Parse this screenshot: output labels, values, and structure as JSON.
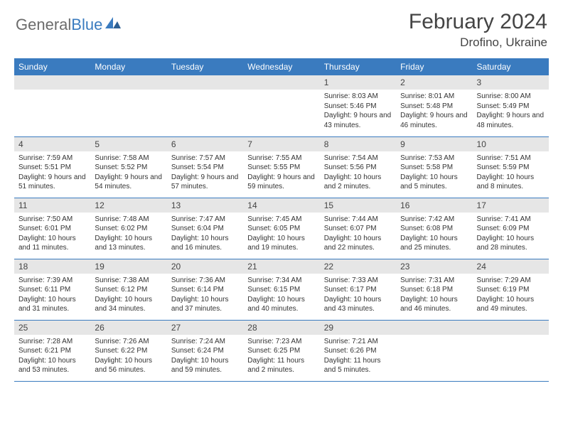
{
  "logo": {
    "main": "General",
    "accent": "Blue"
  },
  "title": "February 2024",
  "location": "Drofino, Ukraine",
  "colors": {
    "header_bg": "#3a7bbf",
    "header_text": "#ffffff",
    "daynum_bg": "#e6e6e6",
    "row_border": "#3a7bbf",
    "text": "#333333",
    "title_color": "#444444",
    "logo_main": "#6b6b6b",
    "logo_accent": "#3a7bbf"
  },
  "weekdays": [
    "Sunday",
    "Monday",
    "Tuesday",
    "Wednesday",
    "Thursday",
    "Friday",
    "Saturday"
  ],
  "weeks": [
    [
      null,
      null,
      null,
      null,
      {
        "n": "1",
        "sunrise": "Sunrise: 8:03 AM",
        "sunset": "Sunset: 5:46 PM",
        "daylight": "Daylight: 9 hours and 43 minutes."
      },
      {
        "n": "2",
        "sunrise": "Sunrise: 8:01 AM",
        "sunset": "Sunset: 5:48 PM",
        "daylight": "Daylight: 9 hours and 46 minutes."
      },
      {
        "n": "3",
        "sunrise": "Sunrise: 8:00 AM",
        "sunset": "Sunset: 5:49 PM",
        "daylight": "Daylight: 9 hours and 48 minutes."
      }
    ],
    [
      {
        "n": "4",
        "sunrise": "Sunrise: 7:59 AM",
        "sunset": "Sunset: 5:51 PM",
        "daylight": "Daylight: 9 hours and 51 minutes."
      },
      {
        "n": "5",
        "sunrise": "Sunrise: 7:58 AM",
        "sunset": "Sunset: 5:52 PM",
        "daylight": "Daylight: 9 hours and 54 minutes."
      },
      {
        "n": "6",
        "sunrise": "Sunrise: 7:57 AM",
        "sunset": "Sunset: 5:54 PM",
        "daylight": "Daylight: 9 hours and 57 minutes."
      },
      {
        "n": "7",
        "sunrise": "Sunrise: 7:55 AM",
        "sunset": "Sunset: 5:55 PM",
        "daylight": "Daylight: 9 hours and 59 minutes."
      },
      {
        "n": "8",
        "sunrise": "Sunrise: 7:54 AM",
        "sunset": "Sunset: 5:56 PM",
        "daylight": "Daylight: 10 hours and 2 minutes."
      },
      {
        "n": "9",
        "sunrise": "Sunrise: 7:53 AM",
        "sunset": "Sunset: 5:58 PM",
        "daylight": "Daylight: 10 hours and 5 minutes."
      },
      {
        "n": "10",
        "sunrise": "Sunrise: 7:51 AM",
        "sunset": "Sunset: 5:59 PM",
        "daylight": "Daylight: 10 hours and 8 minutes."
      }
    ],
    [
      {
        "n": "11",
        "sunrise": "Sunrise: 7:50 AM",
        "sunset": "Sunset: 6:01 PM",
        "daylight": "Daylight: 10 hours and 11 minutes."
      },
      {
        "n": "12",
        "sunrise": "Sunrise: 7:48 AM",
        "sunset": "Sunset: 6:02 PM",
        "daylight": "Daylight: 10 hours and 13 minutes."
      },
      {
        "n": "13",
        "sunrise": "Sunrise: 7:47 AM",
        "sunset": "Sunset: 6:04 PM",
        "daylight": "Daylight: 10 hours and 16 minutes."
      },
      {
        "n": "14",
        "sunrise": "Sunrise: 7:45 AM",
        "sunset": "Sunset: 6:05 PM",
        "daylight": "Daylight: 10 hours and 19 minutes."
      },
      {
        "n": "15",
        "sunrise": "Sunrise: 7:44 AM",
        "sunset": "Sunset: 6:07 PM",
        "daylight": "Daylight: 10 hours and 22 minutes."
      },
      {
        "n": "16",
        "sunrise": "Sunrise: 7:42 AM",
        "sunset": "Sunset: 6:08 PM",
        "daylight": "Daylight: 10 hours and 25 minutes."
      },
      {
        "n": "17",
        "sunrise": "Sunrise: 7:41 AM",
        "sunset": "Sunset: 6:09 PM",
        "daylight": "Daylight: 10 hours and 28 minutes."
      }
    ],
    [
      {
        "n": "18",
        "sunrise": "Sunrise: 7:39 AM",
        "sunset": "Sunset: 6:11 PM",
        "daylight": "Daylight: 10 hours and 31 minutes."
      },
      {
        "n": "19",
        "sunrise": "Sunrise: 7:38 AM",
        "sunset": "Sunset: 6:12 PM",
        "daylight": "Daylight: 10 hours and 34 minutes."
      },
      {
        "n": "20",
        "sunrise": "Sunrise: 7:36 AM",
        "sunset": "Sunset: 6:14 PM",
        "daylight": "Daylight: 10 hours and 37 minutes."
      },
      {
        "n": "21",
        "sunrise": "Sunrise: 7:34 AM",
        "sunset": "Sunset: 6:15 PM",
        "daylight": "Daylight: 10 hours and 40 minutes."
      },
      {
        "n": "22",
        "sunrise": "Sunrise: 7:33 AM",
        "sunset": "Sunset: 6:17 PM",
        "daylight": "Daylight: 10 hours and 43 minutes."
      },
      {
        "n": "23",
        "sunrise": "Sunrise: 7:31 AM",
        "sunset": "Sunset: 6:18 PM",
        "daylight": "Daylight: 10 hours and 46 minutes."
      },
      {
        "n": "24",
        "sunrise": "Sunrise: 7:29 AM",
        "sunset": "Sunset: 6:19 PM",
        "daylight": "Daylight: 10 hours and 49 minutes."
      }
    ],
    [
      {
        "n": "25",
        "sunrise": "Sunrise: 7:28 AM",
        "sunset": "Sunset: 6:21 PM",
        "daylight": "Daylight: 10 hours and 53 minutes."
      },
      {
        "n": "26",
        "sunrise": "Sunrise: 7:26 AM",
        "sunset": "Sunset: 6:22 PM",
        "daylight": "Daylight: 10 hours and 56 minutes."
      },
      {
        "n": "27",
        "sunrise": "Sunrise: 7:24 AM",
        "sunset": "Sunset: 6:24 PM",
        "daylight": "Daylight: 10 hours and 59 minutes."
      },
      {
        "n": "28",
        "sunrise": "Sunrise: 7:23 AM",
        "sunset": "Sunset: 6:25 PM",
        "daylight": "Daylight: 11 hours and 2 minutes."
      },
      {
        "n": "29",
        "sunrise": "Sunrise: 7:21 AM",
        "sunset": "Sunset: 6:26 PM",
        "daylight": "Daylight: 11 hours and 5 minutes."
      },
      null,
      null
    ]
  ]
}
